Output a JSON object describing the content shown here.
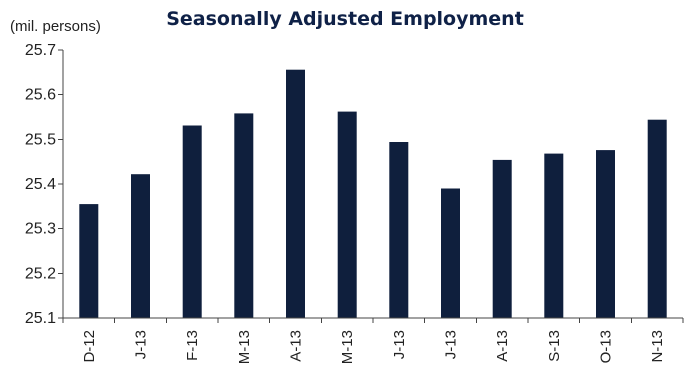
{
  "chart_data": {
    "type": "bar",
    "title": "Seasonally Adjusted Employment",
    "unit_label": "(mil. persons)",
    "categories": [
      "D-12",
      "J-13",
      "F-13",
      "M-13",
      "A-13",
      "M-13",
      "J-13",
      "J-13",
      "A-13",
      "S-13",
      "O-13",
      "N-13"
    ],
    "values": [
      25.355,
      25.422,
      25.531,
      25.558,
      25.656,
      25.562,
      25.494,
      25.39,
      25.454,
      25.468,
      25.476,
      25.544
    ],
    "ylim": [
      25.1,
      25.7
    ],
    "yticks": [
      "25.1",
      "25.2",
      "25.3",
      "25.4",
      "25.5",
      "25.6",
      "25.7"
    ],
    "grid": false,
    "legend": "none",
    "bar_color": "#0f1f3d"
  }
}
